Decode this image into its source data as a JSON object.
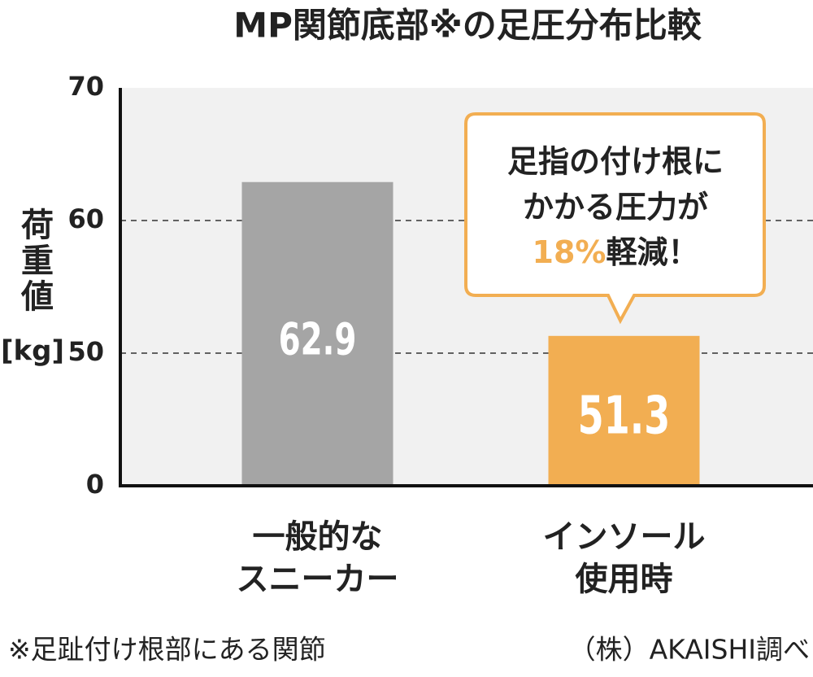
{
  "chart_data": {
    "type": "bar",
    "title": "MP関節底部※の足圧分布比較",
    "y_label": "荷重値",
    "y_unit": "[kg]",
    "categories": [
      [
        "一般的な",
        "スニーカー"
      ],
      [
        "インソール",
        "使用時"
      ]
    ],
    "values": [
      62.9,
      51.3
    ],
    "colors": [
      "#a5a5a5",
      "#f2ae52"
    ],
    "ylim": [
      0,
      70
    ],
    "yticks": [
      0,
      50,
      60,
      70
    ],
    "grid": true,
    "annotation": {
      "lines": [
        "足指の付け根に",
        "かかる圧力が"
      ],
      "highlight": "18%",
      "rest": "軽減！"
    },
    "footnote": "※足趾付け根部にある関節",
    "source": "（株）AKAISHI調べ"
  }
}
